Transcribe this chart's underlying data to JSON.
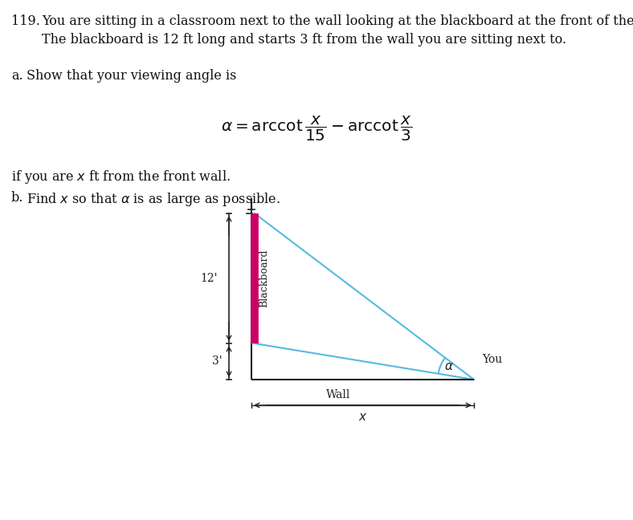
{
  "background_color": "#ffffff",
  "fig_width": 7.88,
  "fig_height": 6.48,
  "problem_number": "119.",
  "line1": "You are sitting in a classroom next to the wall looking at the blackboard at the front of the room.",
  "line2": "The blackboard is 12 ft long and starts 3 ft from the wall you are sitting next to.",
  "part_a_label": "a.",
  "part_a_text": "Show that your viewing angle is",
  "continuation": "if you are $x$ ft from the front wall.",
  "part_b_label": "b.",
  "part_b_text": "Find $x$ so that $\\alpha$ is as large as possible.",
  "diagram": {
    "board_color": "#cc0066",
    "line_color": "#55bbdd",
    "wall_color": "#222222",
    "label_12": "12'",
    "label_3": "3'",
    "label_blackboard": "Blackboard",
    "label_wall": "Wall",
    "label_you": "You"
  }
}
